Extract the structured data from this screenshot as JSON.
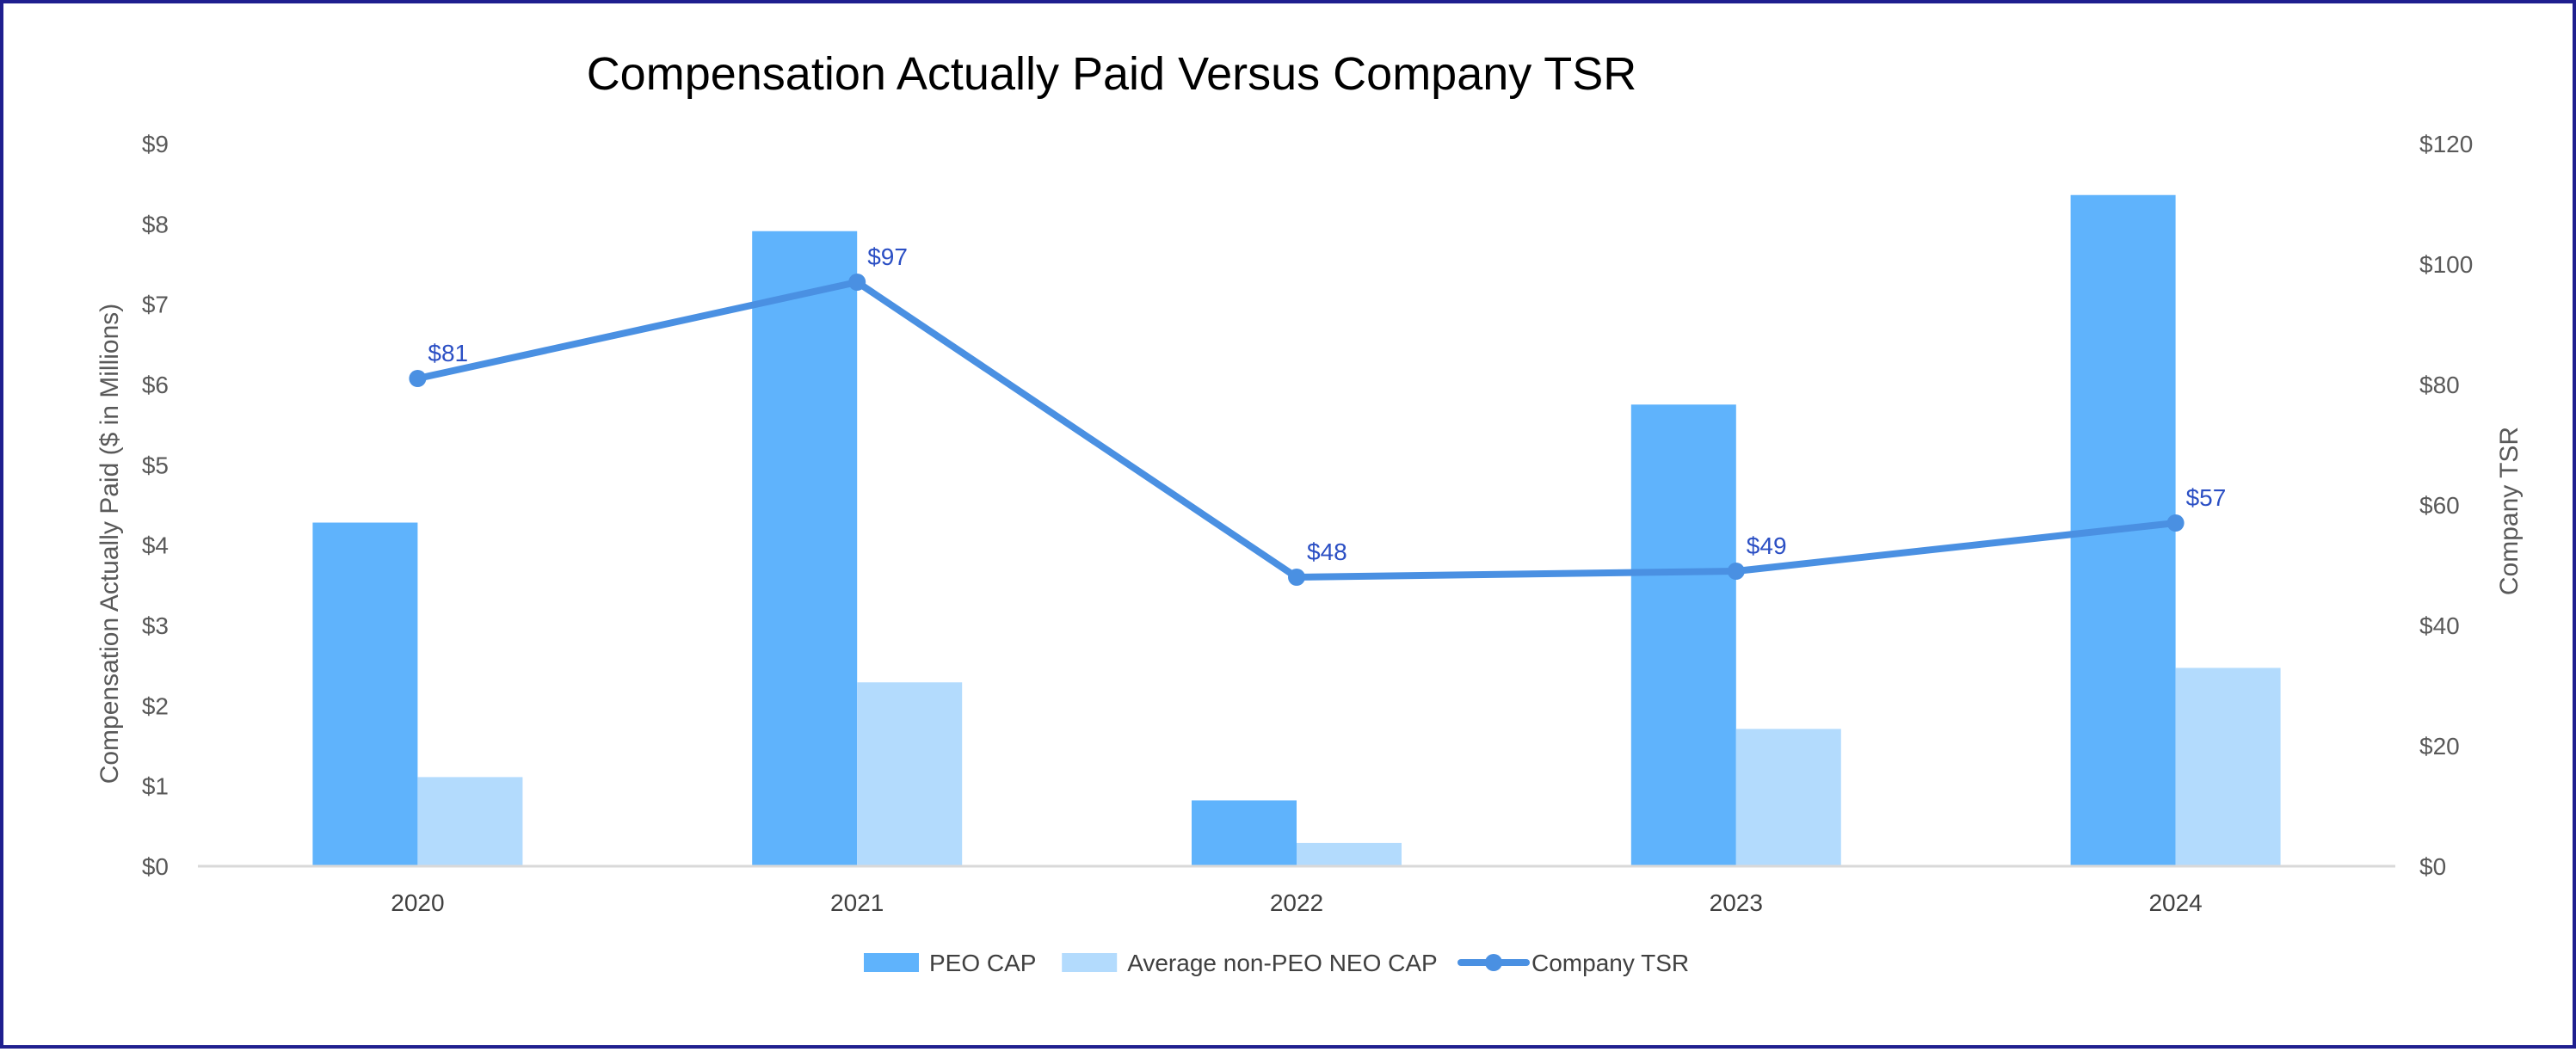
{
  "chart_data": {
    "type": "bar",
    "title": "Compensation Actually Paid Versus Company TSR",
    "categories": [
      "2020",
      "2021",
      "2022",
      "2023",
      "2024"
    ],
    "series": [
      {
        "name": "PEO CAP",
        "kind": "bar",
        "axis": "left",
        "color": "#5fb3fc",
        "values": [
          4.28,
          7.91,
          0.82,
          5.75,
          8.36
        ]
      },
      {
        "name": "Average non-PEO NEO CAP",
        "kind": "bar",
        "axis": "left",
        "color": "#b3dbfd",
        "values": [
          1.11,
          2.29,
          0.29,
          1.71,
          2.47
        ]
      },
      {
        "name": "Company TSR",
        "kind": "line",
        "axis": "right",
        "color": "#4a90e2",
        "values": [
          81,
          97,
          48,
          49,
          57
        ],
        "labels": [
          "$81",
          "$97",
          "$48",
          "$49",
          "$57"
        ]
      }
    ],
    "y_left": {
      "label": "Compensation Actually Paid ($ in Millions)",
      "range": [
        0,
        9
      ],
      "ticks": [
        "$0",
        "$1",
        "$2",
        "$3",
        "$4",
        "$5",
        "$6",
        "$7",
        "$8",
        "$9"
      ]
    },
    "y_right": {
      "label": "Company TSR",
      "range": [
        0,
        120
      ],
      "ticks": [
        "$0",
        "$20",
        "$40",
        "$60",
        "$80",
        "$100",
        "$120"
      ]
    },
    "grid": false,
    "legend": "bottom-center"
  }
}
